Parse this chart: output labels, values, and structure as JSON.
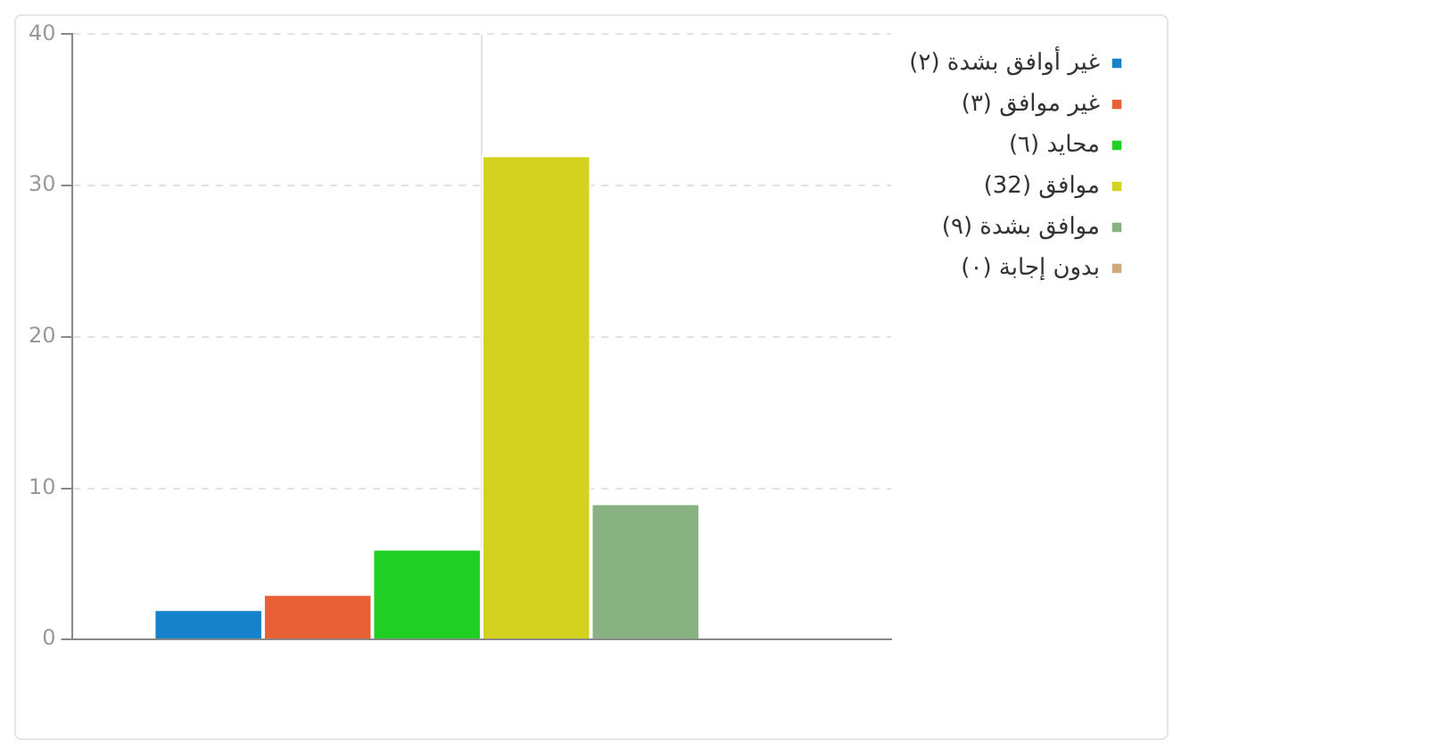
{
  "chart_data": {
    "type": "bar",
    "categories": [
      null
    ],
    "series": [
      {
        "name": "غير أوافق بشدة (٢)",
        "color": "#1582c9",
        "values": [
          2
        ]
      },
      {
        "name": "غير موافق (٣)",
        "color": "#e86035",
        "values": [
          3
        ]
      },
      {
        "name": "محايد (٦)",
        "color": "#20cf24",
        "values": [
          6
        ]
      },
      {
        "name": "موافق (32)",
        "color": "#d3d31f",
        "values": [
          32
        ]
      },
      {
        "name": "موافق بشدة (٩)",
        "color": "#89b283",
        "values": [
          9
        ]
      },
      {
        "name": "بدون إجابة (٠)",
        "color": "#d0aa7f",
        "values": [
          0
        ]
      }
    ],
    "ylim": [
      0,
      40
    ],
    "yticks": [
      0,
      10,
      20,
      30,
      40
    ],
    "grid": true,
    "legend": "right"
  }
}
